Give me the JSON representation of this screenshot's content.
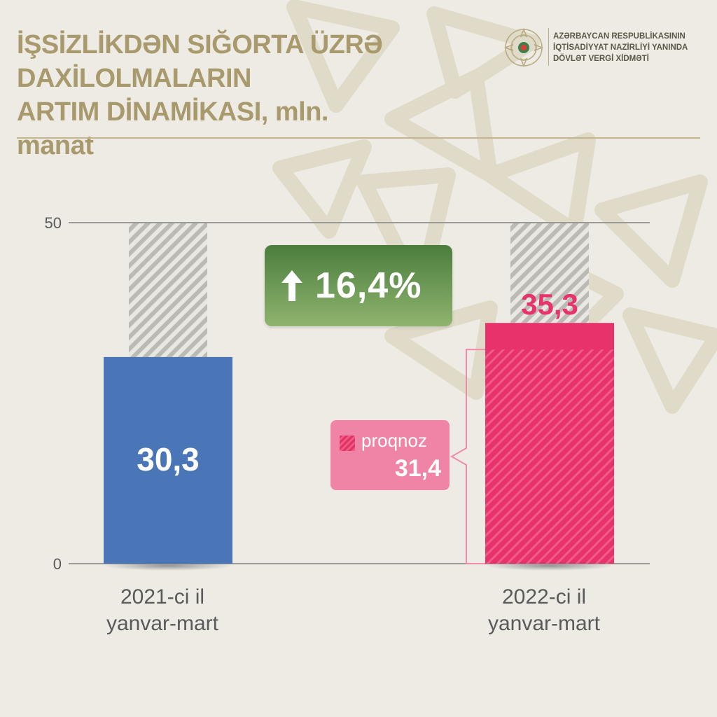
{
  "header": {
    "title_lines": [
      "İŞSİZLİKDƏN SIĞORTA ÜZRƏ",
      "DAXİLOLMALARIN",
      "ARTIM DİNAMİKASI, mln. manat"
    ],
    "ministry_lines": [
      "AZƏRBAYCAN RESPUBLİKASININ",
      "İQTİSADİYYAT NAZİRLİYİ YANINDA",
      "DÖVLƏT VERGİ XİDMƏTİ"
    ]
  },
  "growth": {
    "label": "16,4%"
  },
  "forecast": {
    "label": "proqnoz",
    "value": "31,4"
  },
  "colors": {
    "blue": "#4a76b8",
    "pink": "#e8326c",
    "green": "#5a8a46",
    "title": "#a89a6c",
    "background": "#edebe3"
  },
  "chart_data": {
    "type": "bar",
    "ylim": [
      0,
      50
    ],
    "y_ticks": [
      "0",
      "50"
    ],
    "categories": [
      [
        "2021-ci il",
        "yanvar-mart"
      ],
      [
        "2022-ci il",
        "yanvar-mart"
      ]
    ],
    "values": [
      30.3,
      35.3
    ],
    "value_labels": [
      "30,3",
      "35,3"
    ],
    "forecast_value": 31.4,
    "forecast_label": "31,4"
  }
}
